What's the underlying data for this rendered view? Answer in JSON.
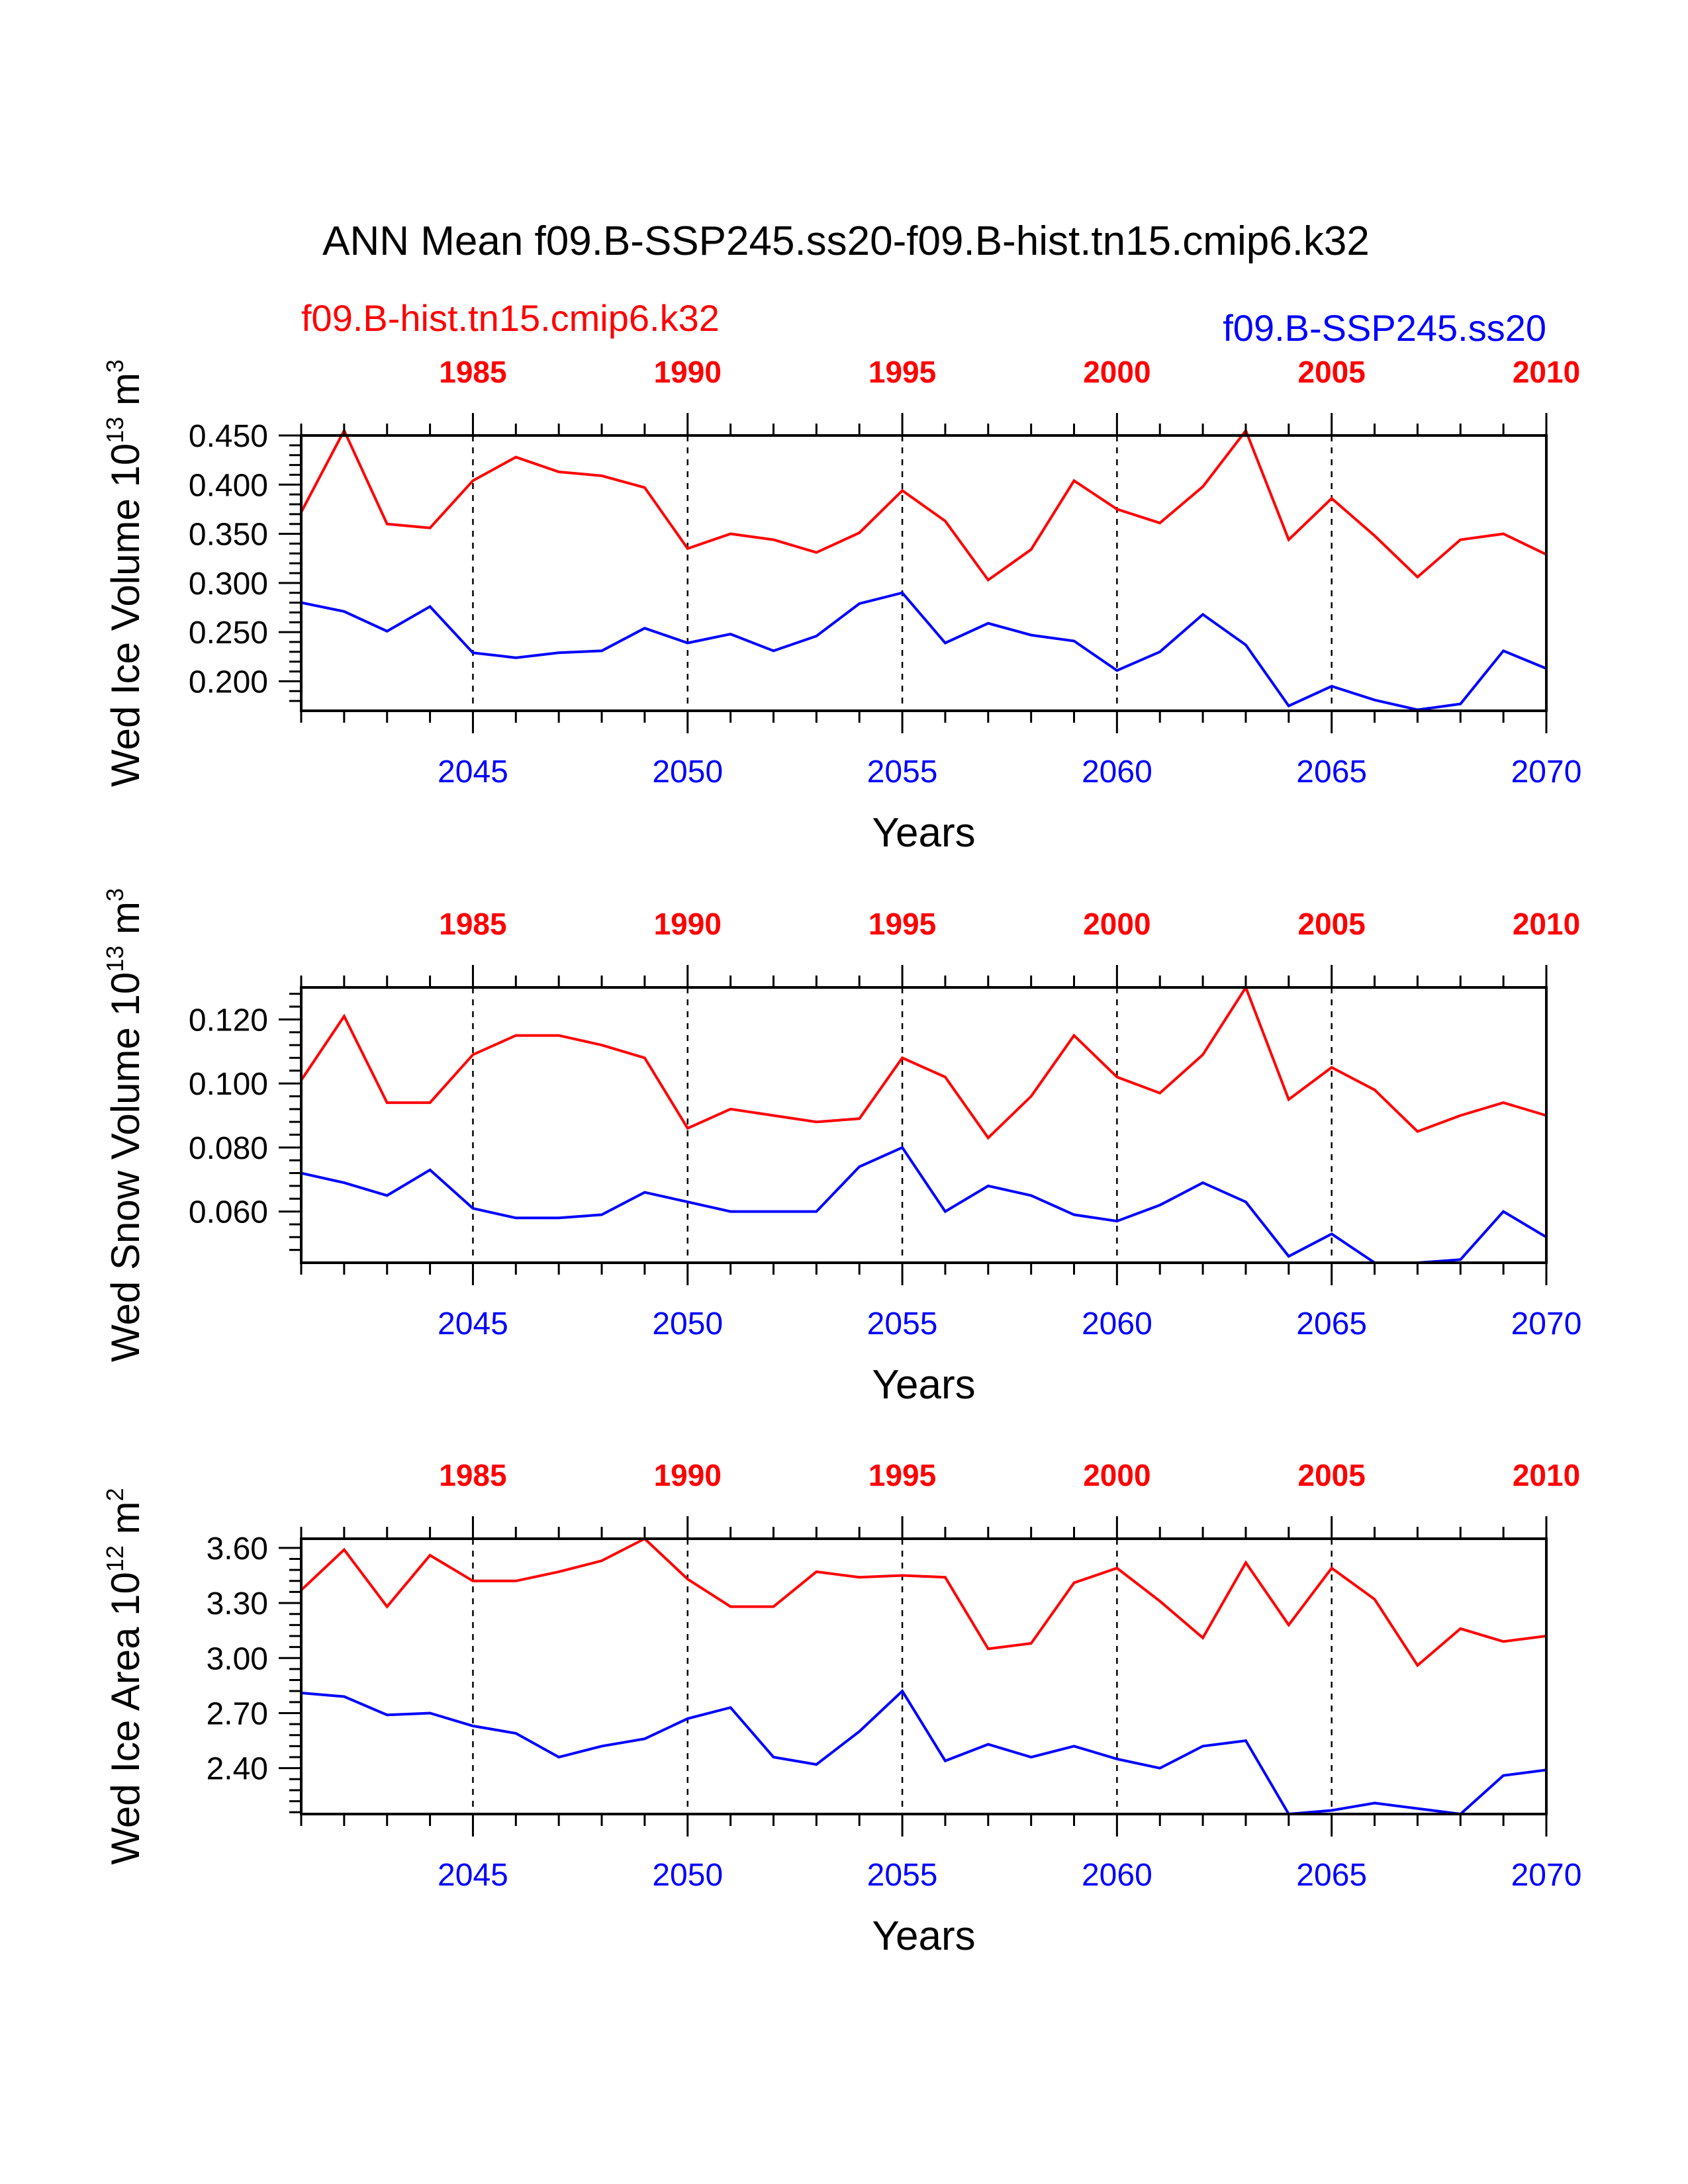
{
  "title": "ANN Mean f09.B-SSP245.ss20-f09.B-hist.tn15.cmip6.k32",
  "legend": {
    "red_label": "f09.B-hist.tn15.cmip6.k32",
    "blue_label": "f09.B-SSP245.ss20"
  },
  "colors": {
    "red": "#ff0000",
    "blue": "#0000ff",
    "axis": "#000000"
  },
  "top_axis": {
    "ticks": [
      "1985",
      "1990",
      "1995",
      "2000",
      "2005",
      "2010"
    ]
  },
  "bottom_axis": {
    "ticks": [
      "2045",
      "2050",
      "2055",
      "2060",
      "2065",
      "2070"
    ]
  },
  "chart_data": [
    {
      "type": "line",
      "ylabel_main": "Wed Ice Volume 10",
      "ylabel_exp": "13",
      "ylabel_unit": " m",
      "ylabel_unit_exp": "3",
      "xlabel": "Years",
      "yticks": [
        "0.450",
        "0.400",
        "0.350",
        "0.300",
        "0.250",
        "0.200"
      ],
      "ytick_values": [
        0.45,
        0.4,
        0.35,
        0.3,
        0.25,
        0.2
      ],
      "ylim": [
        0.17,
        0.45
      ],
      "x_bottom": [
        2041,
        2070
      ],
      "x_top": [
        1981,
        2010
      ],
      "series": [
        {
          "name": "f09.B-hist.tn15.cmip6.k32",
          "color": "red",
          "values": [
            0.372,
            0.455,
            0.36,
            0.356,
            0.404,
            0.428,
            0.413,
            0.409,
            0.397,
            0.335,
            0.35,
            0.344,
            0.331,
            0.351,
            0.394,
            0.363,
            0.303,
            0.334,
            0.404,
            0.375,
            0.361,
            0.398,
            0.455,
            0.344,
            0.386,
            0.348,
            0.306,
            0.344,
            0.35,
            0.329
          ]
        },
        {
          "name": "f09.B-SSP245.ss20",
          "color": "blue",
          "values": [
            0.28,
            0.271,
            0.251,
            0.276,
            0.229,
            0.224,
            0.229,
            0.231,
            0.254,
            0.239,
            0.248,
            0.231,
            0.246,
            0.279,
            0.29,
            0.239,
            0.259,
            0.247,
            0.241,
            0.211,
            0.23,
            0.268,
            0.237,
            0.175,
            0.195,
            0.181,
            0.171,
            0.177,
            0.231,
            0.213
          ]
        }
      ]
    },
    {
      "type": "line",
      "ylabel_main": "Wed Snow Volume 10",
      "ylabel_exp": "13",
      "ylabel_unit": " m",
      "ylabel_unit_exp": "3",
      "xlabel": "Years",
      "yticks": [
        "0.120",
        "0.100",
        "0.080",
        "0.060"
      ],
      "ytick_values": [
        0.12,
        0.1,
        0.08,
        0.06
      ],
      "ylim": [
        0.044,
        0.13
      ],
      "x_bottom": [
        2041,
        2070
      ],
      "x_top": [
        1981,
        2010
      ],
      "series": [
        {
          "name": "f09.B-hist.tn15.cmip6.k32",
          "color": "red",
          "values": [
            0.101,
            0.121,
            0.094,
            0.094,
            0.109,
            0.115,
            0.115,
            0.112,
            0.108,
            0.086,
            0.092,
            0.09,
            0.088,
            0.089,
            0.108,
            0.102,
            0.083,
            0.096,
            0.115,
            0.102,
            0.097,
            0.109,
            0.13,
            0.095,
            0.105,
            0.098,
            0.085,
            0.09,
            0.094,
            0.09
          ]
        },
        {
          "name": "f09.B-SSP245.ss20",
          "color": "blue",
          "values": [
            0.072,
            0.069,
            0.065,
            0.073,
            0.061,
            0.058,
            0.058,
            0.059,
            0.066,
            0.063,
            0.06,
            0.06,
            0.06,
            0.074,
            0.08,
            0.06,
            0.068,
            0.065,
            0.059,
            0.057,
            0.062,
            0.069,
            0.063,
            0.046,
            0.053,
            0.044,
            0.044,
            0.045,
            0.06,
            0.052
          ]
        }
      ]
    },
    {
      "type": "line",
      "ylabel_main": "Wed Ice Area 10",
      "ylabel_exp": "12",
      "ylabel_unit": " m",
      "ylabel_unit_exp": "2",
      "xlabel": "Years",
      "yticks": [
        "3.60",
        "3.30",
        "3.00",
        "2.70",
        "2.40"
      ],
      "ytick_values": [
        3.6,
        3.3,
        3.0,
        2.7,
        2.4
      ],
      "ylim": [
        2.15,
        3.65
      ],
      "x_bottom": [
        2041,
        2070
      ],
      "x_top": [
        1981,
        2010
      ],
      "series": [
        {
          "name": "f09.B-hist.tn15.cmip6.k32",
          "color": "red",
          "values": [
            3.37,
            3.59,
            3.28,
            3.56,
            3.42,
            3.42,
            3.47,
            3.53,
            3.65,
            3.43,
            3.28,
            3.28,
            3.47,
            3.44,
            3.45,
            3.44,
            3.05,
            3.08,
            3.41,
            3.49,
            3.31,
            3.11,
            3.52,
            3.18,
            3.49,
            3.32,
            2.96,
            3.16,
            3.09,
            3.12
          ]
        },
        {
          "name": "f09.B-SSP245.ss20",
          "color": "blue",
          "values": [
            2.81,
            2.79,
            2.69,
            2.7,
            2.63,
            2.59,
            2.46,
            2.52,
            2.56,
            2.67,
            2.73,
            2.46,
            2.42,
            2.6,
            2.82,
            2.44,
            2.53,
            2.46,
            2.52,
            2.45,
            2.4,
            2.52,
            2.55,
            2.15,
            2.17,
            2.21,
            2.18,
            2.15,
            2.36,
            2.39
          ]
        }
      ]
    }
  ]
}
